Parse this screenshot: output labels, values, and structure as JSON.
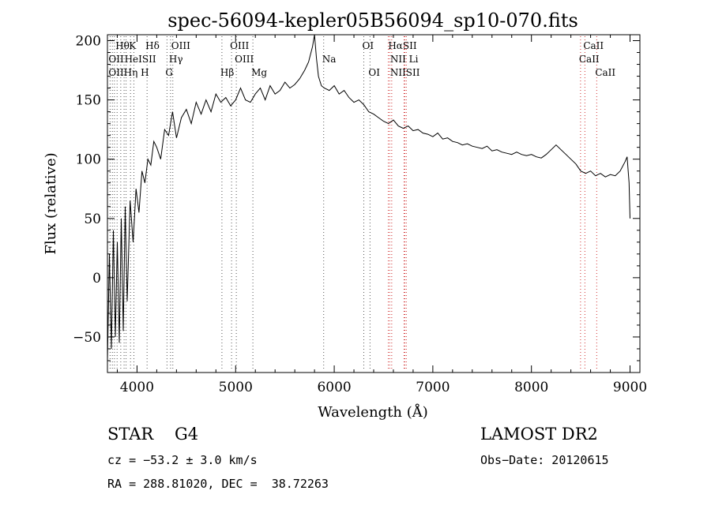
{
  "chart_data": {
    "type": "line",
    "title": "spec-56094-kepler05B56094_sp10-070.fits",
    "xlabel": "Wavelength (Å)",
    "ylabel": "Flux (relative)",
    "xlim": [
      3700,
      9100
    ],
    "ylim": [
      -80,
      205
    ],
    "xticks": [
      4000,
      5000,
      6000,
      7000,
      8000,
      9000
    ],
    "yticks": [
      -50,
      0,
      50,
      100,
      150,
      200
    ],
    "grid": false,
    "color": "#000000",
    "line_marker_color": "#d03030",
    "series": [
      {
        "x": [
          3700,
          3720,
          3740,
          3760,
          3780,
          3800,
          3820,
          3840,
          3860,
          3880,
          3900,
          3930,
          3960,
          3990,
          4020,
          4050,
          4080,
          4110,
          4140,
          4170,
          4200,
          4240,
          4280,
          4320,
          4360,
          4400,
          4450,
          4500,
          4550,
          4600,
          4650,
          4700,
          4750,
          4800,
          4850,
          4900,
          4950,
          5000,
          5050,
          5100,
          5150,
          5200,
          5250,
          5300,
          5350,
          5400,
          5450,
          5500,
          5550,
          5600,
          5650,
          5700,
          5740,
          5780,
          5800,
          5820,
          5840,
          5870,
          5900,
          5950,
          6000,
          6050,
          6100,
          6150,
          6200,
          6250,
          6300,
          6350,
          6400,
          6450,
          6500,
          6550,
          6600,
          6650,
          6700,
          6750,
          6800,
          6850,
          6900,
          6950,
          7000,
          7050,
          7100,
          7150,
          7200,
          7250,
          7300,
          7350,
          7400,
          7450,
          7500,
          7550,
          7600,
          7650,
          7700,
          7750,
          7800,
          7850,
          7900,
          7950,
          8000,
          8050,
          8100,
          8150,
          8200,
          8250,
          8300,
          8350,
          8400,
          8450,
          8500,
          8550,
          8600,
          8650,
          8700,
          8750,
          8800,
          8850,
          8900,
          8950,
          8970,
          8990,
          9000
        ],
        "y": [
          -70,
          20,
          -60,
          40,
          -50,
          30,
          -55,
          50,
          -45,
          60,
          -20,
          65,
          30,
          75,
          55,
          90,
          80,
          100,
          95,
          115,
          110,
          100,
          125,
          120,
          140,
          118,
          135,
          142,
          130,
          148,
          138,
          150,
          140,
          155,
          148,
          152,
          145,
          150,
          160,
          150,
          148,
          155,
          160,
          150,
          162,
          155,
          158,
          165,
          160,
          163,
          168,
          175,
          182,
          195,
          205,
          185,
          170,
          162,
          160,
          158,
          162,
          155,
          158,
          152,
          148,
          150,
          146,
          140,
          138,
          135,
          132,
          130,
          133,
          128,
          126,
          128,
          124,
          125,
          122,
          121,
          119,
          122,
          117,
          118,
          115,
          114,
          112,
          113,
          111,
          110,
          109,
          111,
          107,
          108,
          106,
          105,
          104,
          106,
          104,
          103,
          104,
          102,
          101,
          104,
          108,
          112,
          108,
          104,
          100,
          96,
          90,
          88,
          90,
          86,
          88,
          85,
          87,
          86,
          90,
          98,
          102,
          80,
          50
        ]
      }
    ],
    "line_labels": [
      {
        "text": "Hθ",
        "x": 3798,
        "row": 1
      },
      {
        "text": "K",
        "x": 3934,
        "row": 1
      },
      {
        "text": "Hδ",
        "x": 4102,
        "row": 1
      },
      {
        "text": "OIII",
        "x": 4363,
        "row": 1
      },
      {
        "text": "OIII",
        "x": 4959,
        "row": 1
      },
      {
        "text": "OI",
        "x": 6300,
        "row": 1
      },
      {
        "text": "HαSII",
        "x": 6563,
        "row": 1
      },
      {
        "text": "CaII",
        "x": 8542,
        "row": 1
      },
      {
        "text": "OII",
        "x": 3727,
        "row": 2
      },
      {
        "text": "HeISII",
        "x": 3889,
        "row": 2
      },
      {
        "text": "Hγ",
        "x": 4340,
        "row": 2
      },
      {
        "text": "OIII",
        "x": 5007,
        "row": 2
      },
      {
        "text": "Na",
        "x": 5893,
        "row": 2
      },
      {
        "text": "NII Li",
        "x": 6583,
        "row": 2
      },
      {
        "text": "CaII",
        "x": 8498,
        "row": 2
      },
      {
        "text": "OIIHη H",
        "x": 3727,
        "row": 3
      },
      {
        "text": "G",
        "x": 4304,
        "row": 3
      },
      {
        "text": "Hβ",
        "x": 4861,
        "row": 3
      },
      {
        "text": "Mg",
        "x": 5175,
        "row": 3
      },
      {
        "text": "OI",
        "x": 6363,
        "row": 3
      },
      {
        "text": "NIISII",
        "x": 6583,
        "row": 3
      },
      {
        "text": "CaII",
        "x": 8662,
        "row": 3
      }
    ],
    "line_positions": [
      3727,
      3750,
      3771,
      3798,
      3835,
      3869,
      3889,
      3934,
      3968,
      4102,
      4304,
      4340,
      4363,
      4861,
      4959,
      5007,
      5175,
      5893,
      6300,
      6363,
      6548,
      6563,
      6583,
      6708,
      6716,
      6731,
      8498,
      8542,
      8662
    ]
  },
  "footer": {
    "object_type": "STAR",
    "subclass": "G4",
    "survey": "LAMOST DR2",
    "cz": "cz = −53.2 ± 3.0 km/s",
    "obs_date": "Obs−Date: 20120615",
    "radec": "RA = 288.81020, DEC =  38.72263"
  }
}
